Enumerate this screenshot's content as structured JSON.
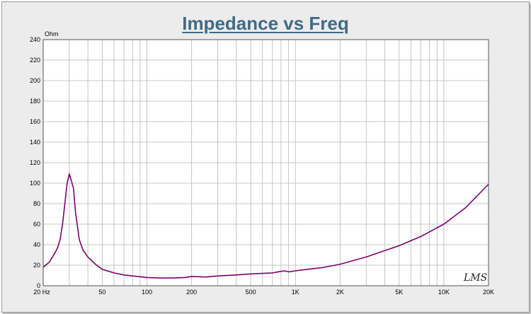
{
  "chart_data": {
    "type": "line",
    "title": "Impedance vs Freq",
    "ylabel": "Ohm",
    "xlabel": "",
    "x_scale": "log",
    "xlim": [
      20,
      20000
    ],
    "ylim": [
      0,
      240
    ],
    "yticks": [
      0,
      20,
      40,
      60,
      80,
      100,
      120,
      140,
      160,
      180,
      200,
      220,
      240
    ],
    "xtick_values": [
      20,
      50,
      100,
      200,
      500,
      1000,
      2000,
      5000,
      10000,
      20000
    ],
    "xtick_labels": [
      "20  Hz",
      "50",
      "100",
      "200",
      "500",
      "1K",
      "2K",
      "5K",
      "10K",
      "20K"
    ],
    "grid": true,
    "line_color": "#80006a",
    "watermark": "LMS",
    "series": [
      {
        "x": [
          20,
          22,
          24,
          25,
          26,
          27,
          28,
          29,
          30,
          31,
          32,
          33,
          35,
          37,
          40,
          45,
          50,
          60,
          70,
          80,
          100,
          120,
          150,
          180,
          200,
          250,
          300,
          400,
          500,
          600,
          700,
          800,
          850,
          900,
          1000,
          1200,
          1500,
          2000,
          3000,
          5000,
          7000,
          10000,
          14000,
          20000
        ],
        "y": [
          18,
          23,
          32,
          37,
          45,
          60,
          80,
          100,
          109,
          102,
          95,
          72,
          45,
          35,
          28,
          21,
          16,
          12.5,
          10.5,
          9.5,
          8,
          7.5,
          7.5,
          8,
          9,
          8.5,
          9.5,
          10.5,
          11.5,
          12,
          12.5,
          14,
          14.5,
          13.5,
          14.5,
          16,
          17.5,
          21,
          28,
          39,
          48,
          60,
          76,
          99
        ]
      }
    ]
  }
}
